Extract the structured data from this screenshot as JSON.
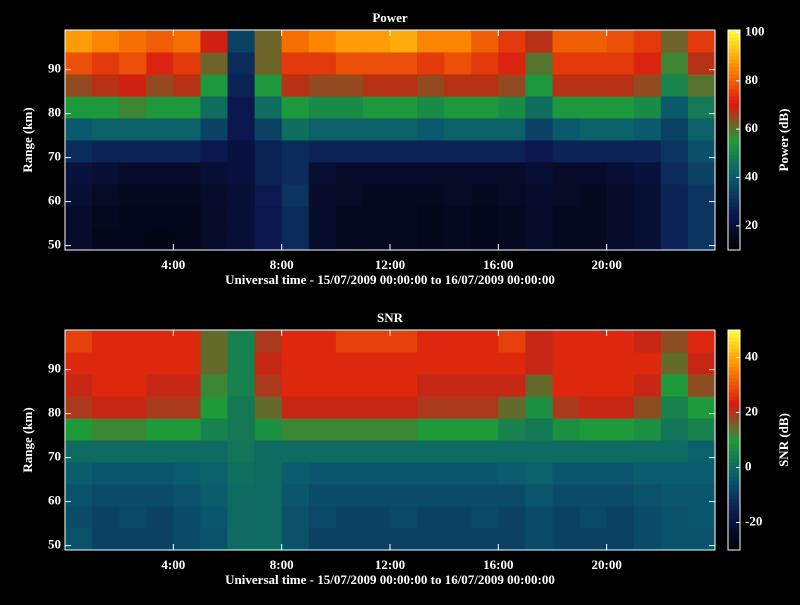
{
  "chart_data": [
    {
      "type": "heatmap",
      "title": "Power",
      "xlabel": "Universal time - 15/07/2009 00:00:00 to 16/07/2009 00:00:00",
      "ylabel": "Range (km)",
      "colorbar_label": "Power (dB)",
      "xbins": [
        0,
        1,
        2,
        3,
        4,
        5,
        6,
        7,
        8,
        9,
        10,
        11,
        12,
        13,
        14,
        15,
        16,
        17,
        18,
        19,
        20,
        21,
        22,
        23,
        24
      ],
      "ybins": [
        49,
        54,
        59,
        64,
        69,
        74,
        79,
        84,
        89,
        94,
        99
      ],
      "xlim": [
        0,
        24
      ],
      "ylim": [
        49,
        99
      ],
      "xticks": [
        {
          "value": 4,
          "label": "4:00"
        },
        {
          "value": 8,
          "label": "8:00"
        },
        {
          "value": 12,
          "label": "12:00"
        },
        {
          "value": 16,
          "label": "16:00"
        },
        {
          "value": 20,
          "label": "20:00"
        }
      ],
      "yticks": [
        50,
        60,
        70,
        80,
        90
      ],
      "clim": [
        10,
        101
      ],
      "cticks": [
        20,
        40,
        60,
        80,
        100
      ],
      "colorscale": [
        "#000000",
        "#0c1650",
        "#0a5a6e",
        "#1f9a3a",
        "#d81a10",
        "#ff8a00",
        "#ffff30"
      ],
      "z": [
        [
          18,
          15,
          15,
          14,
          15,
          18,
          20,
          25,
          30,
          18,
          16,
          16,
          16,
          15,
          16,
          15,
          16,
          18,
          16,
          16,
          18,
          20,
          28,
          32
        ],
        [
          18,
          16,
          15,
          15,
          15,
          18,
          20,
          25,
          30,
          18,
          16,
          16,
          16,
          15,
          16,
          15,
          16,
          18,
          16,
          16,
          18,
          20,
          28,
          32
        ],
        [
          20,
          17,
          16,
          16,
          16,
          18,
          20,
          26,
          32,
          18,
          17,
          16,
          16,
          16,
          17,
          16,
          17,
          18,
          17,
          16,
          18,
          20,
          28,
          32
        ],
        [
          22,
          20,
          18,
          18,
          18,
          20,
          22,
          28,
          30,
          20,
          18,
          18,
          18,
          18,
          18,
          18,
          18,
          20,
          18,
          18,
          20,
          22,
          30,
          35
        ],
        [
          30,
          28,
          28,
          28,
          28,
          25,
          22,
          28,
          30,
          28,
          28,
          28,
          28,
          28,
          28,
          28,
          28,
          25,
          28,
          28,
          28,
          28,
          32,
          38
        ],
        [
          40,
          42,
          42,
          42,
          42,
          35,
          25,
          35,
          45,
          42,
          42,
          42,
          42,
          40,
          42,
          42,
          42,
          35,
          40,
          42,
          42,
          40,
          35,
          42
        ],
        [
          55,
          55,
          58,
          55,
          55,
          45,
          25,
          45,
          55,
          52,
          52,
          55,
          55,
          52,
          55,
          55,
          52,
          45,
          55,
          55,
          55,
          52,
          40,
          48
        ],
        [
          65,
          68,
          70,
          65,
          68,
          55,
          28,
          55,
          68,
          65,
          65,
          68,
          68,
          65,
          68,
          68,
          65,
          55,
          68,
          68,
          68,
          65,
          50,
          60
        ],
        [
          78,
          75,
          78,
          72,
          75,
          62,
          30,
          62,
          75,
          75,
          78,
          78,
          78,
          75,
          78,
          75,
          72,
          60,
          75,
          75,
          75,
          72,
          58,
          68
        ],
        [
          88,
          85,
          82,
          80,
          82,
          70,
          35,
          62,
          82,
          85,
          88,
          88,
          90,
          85,
          85,
          80,
          75,
          68,
          80,
          80,
          78,
          75,
          62,
          75
        ]
      ]
    },
    {
      "type": "heatmap",
      "title": "SNR",
      "xlabel": "Universal time - 15/07/2009 00:00:00 to 16/07/2009 00:00:00",
      "ylabel": "Range (km)",
      "colorbar_label": "SNR (dB)",
      "xbins": [
        0,
        1,
        2,
        3,
        4,
        5,
        6,
        7,
        8,
        9,
        10,
        11,
        12,
        13,
        14,
        15,
        16,
        17,
        18,
        19,
        20,
        21,
        22,
        23,
        24
      ],
      "ybins": [
        49,
        54,
        59,
        64,
        69,
        74,
        79,
        84,
        89,
        94,
        99
      ],
      "xlim": [
        0,
        24
      ],
      "ylim": [
        49,
        99
      ],
      "xticks": [
        {
          "value": 4,
          "label": "4:00"
        },
        {
          "value": 8,
          "label": "8:00"
        },
        {
          "value": 12,
          "label": "12:00"
        },
        {
          "value": 16,
          "label": "16:00"
        },
        {
          "value": 20,
          "label": "20:00"
        }
      ],
      "yticks": [
        50,
        60,
        70,
        80,
        90
      ],
      "clim": [
        -30,
        50
      ],
      "cticks": [
        -20,
        0,
        20,
        40
      ],
      "colorscale": [
        "#000000",
        "#0c1650",
        "#0a5a6e",
        "#1f9a3a",
        "#d81a10",
        "#ff8a00",
        "#ffff30"
      ],
      "z": [
        [
          -5,
          -8,
          -8,
          -8,
          -6,
          -5,
          0,
          0,
          -5,
          -8,
          -8,
          -8,
          -8,
          -8,
          -8,
          -8,
          -8,
          -6,
          -8,
          -8,
          -8,
          -6,
          -5,
          -5
        ],
        [
          -6,
          -8,
          -7,
          -8,
          -6,
          -4,
          0,
          0,
          -5,
          -7,
          -8,
          -8,
          -7,
          -8,
          -8,
          -7,
          -8,
          -6,
          -8,
          -7,
          -8,
          -6,
          -5,
          -4
        ],
        [
          -5,
          -6,
          -6,
          -6,
          -5,
          -3,
          0,
          0,
          -4,
          -6,
          -6,
          -6,
          -6,
          -6,
          -6,
          -6,
          -6,
          -4,
          -6,
          -6,
          -6,
          -5,
          -4,
          -4
        ],
        [
          -3,
          -4,
          -4,
          -4,
          -3,
          -2,
          1,
          0,
          -3,
          -4,
          -4,
          -4,
          -4,
          -4,
          -4,
          -4,
          -3,
          -2,
          -4,
          -4,
          -4,
          -3,
          -3,
          -3
        ],
        [
          0,
          0,
          0,
          0,
          0,
          0,
          2,
          0,
          0,
          0,
          0,
          0,
          0,
          0,
          0,
          0,
          0,
          0,
          0,
          0,
          0,
          0,
          0,
          -2
        ],
        [
          10,
          12,
          12,
          10,
          10,
          5,
          3,
          8,
          12,
          12,
          12,
          12,
          12,
          10,
          10,
          10,
          5,
          3,
          8,
          10,
          10,
          8,
          2,
          5
        ],
        [
          20,
          22,
          22,
          20,
          20,
          10,
          3,
          15,
          22,
          22,
          22,
          22,
          22,
          20,
          20,
          20,
          15,
          8,
          20,
          22,
          22,
          18,
          5,
          10
        ],
        [
          22,
          25,
          25,
          22,
          22,
          12,
          5,
          20,
          25,
          25,
          25,
          25,
          25,
          22,
          22,
          22,
          22,
          15,
          25,
          25,
          25,
          22,
          10,
          18
        ],
        [
          25,
          25,
          25,
          25,
          25,
          15,
          5,
          22,
          25,
          25,
          25,
          25,
          25,
          25,
          25,
          25,
          25,
          22,
          25,
          25,
          25,
          25,
          15,
          22
        ],
        [
          28,
          25,
          25,
          25,
          25,
          15,
          5,
          20,
          25,
          25,
          28,
          28,
          28,
          25,
          25,
          25,
          28,
          22,
          25,
          25,
          25,
          22,
          18,
          25
        ]
      ]
    }
  ]
}
